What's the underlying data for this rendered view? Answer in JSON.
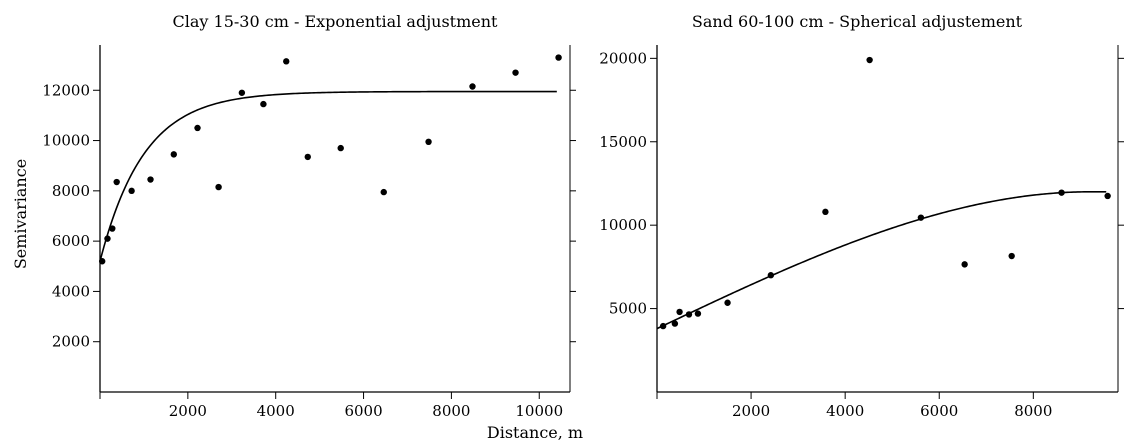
{
  "figure": {
    "shared_xlabel": "Distance, m"
  },
  "chart_data": [
    {
      "type": "scatter",
      "title": "Clay 15-30 cm - Exponential adjustment",
      "xlabel": "Distance, m",
      "ylabel": "Semivariance",
      "xlim": [
        0,
        10700
      ],
      "ylim": [
        0,
        13800
      ],
      "xticks": [
        2000,
        4000,
        6000,
        8000,
        10000
      ],
      "yticks": [
        2000,
        4000,
        6000,
        8000,
        10000,
        12000
      ],
      "grid": false,
      "series": [
        {
          "kind": "points",
          "points": [
            [
              50,
              5200
            ],
            [
              170,
              6100
            ],
            [
              280,
              6500
            ],
            [
              380,
              8350
            ],
            [
              720,
              8000
            ],
            [
              1150,
              8450
            ],
            [
              1680,
              9450
            ],
            [
              2220,
              10500
            ],
            [
              2700,
              8150
            ],
            [
              3230,
              11900
            ],
            [
              3720,
              11450
            ],
            [
              4240,
              13150
            ],
            [
              4730,
              9350
            ],
            [
              5480,
              9700
            ],
            [
              6460,
              7950
            ],
            [
              7480,
              9950
            ],
            [
              8480,
              12150
            ],
            [
              9460,
              12700
            ],
            [
              10440,
              13300
            ]
          ]
        },
        {
          "kind": "fitted-curve",
          "model": "exponential",
          "nugget": 5200,
          "sill": 11950,
          "range_param": 1000,
          "x_max": 10400
        }
      ]
    },
    {
      "type": "scatter",
      "title": "Sand 60-100 cm - Spherical adjustement",
      "xlabel": "Distance, m",
      "ylabel": "",
      "xlim": [
        0,
        9800
      ],
      "ylim": [
        0,
        20800
      ],
      "xticks": [
        2000,
        4000,
        6000,
        8000
      ],
      "yticks": [
        5000,
        10000,
        15000,
        20000
      ],
      "grid": false,
      "series": [
        {
          "kind": "points",
          "points": [
            [
              130,
              3950
            ],
            [
              380,
              4100
            ],
            [
              480,
              4800
            ],
            [
              680,
              4650
            ],
            [
              870,
              4700
            ],
            [
              1500,
              5350
            ],
            [
              2420,
              7000
            ],
            [
              3580,
              10800
            ],
            [
              4520,
              19900
            ],
            [
              5610,
              10450
            ],
            [
              6540,
              7650
            ],
            [
              7540,
              8150
            ],
            [
              8600,
              11950
            ],
            [
              9580,
              11750
            ]
          ]
        },
        {
          "kind": "fitted-curve",
          "model": "spherical",
          "nugget": 3800,
          "sill": 12000,
          "range_param": 9200,
          "x_max": 9550
        }
      ]
    }
  ]
}
